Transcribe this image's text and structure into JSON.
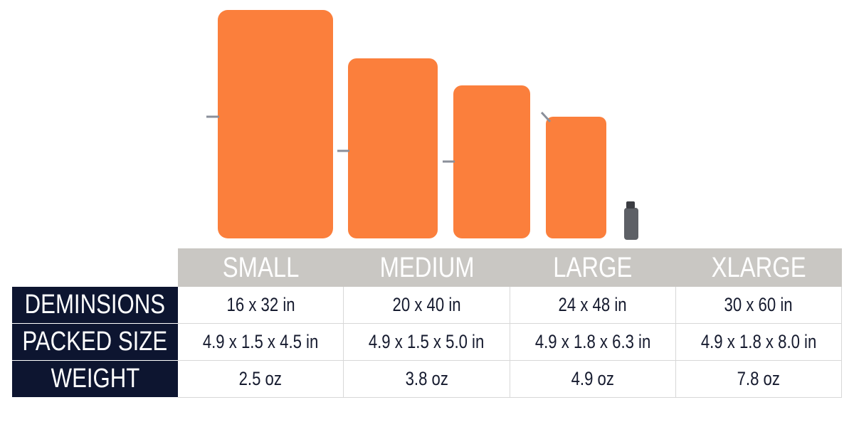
{
  "table": {
    "header": [
      "SMALL",
      "MEDIUM",
      "LARGE",
      "XLARGE"
    ],
    "rows": [
      {
        "label": "DEMINSIONS",
        "cells": [
          "16 x 32 in",
          "20 x 40 in",
          "24 x 48 in",
          "30 x 60 in"
        ]
      },
      {
        "label": "PACKED SIZE",
        "cells": [
          "4.9 x 1.5 x 4.5 in",
          "4.9 x 1.5 x 5.0 in",
          "4.9 x 1.8 x 6.3 in",
          "4.9 x 1.8 x 8.0 in"
        ]
      },
      {
        "label": "WEIGHT",
        "cells": [
          "2.5 oz",
          "3.8 oz",
          "4.9 oz",
          "7.8 oz"
        ]
      }
    ]
  }
}
